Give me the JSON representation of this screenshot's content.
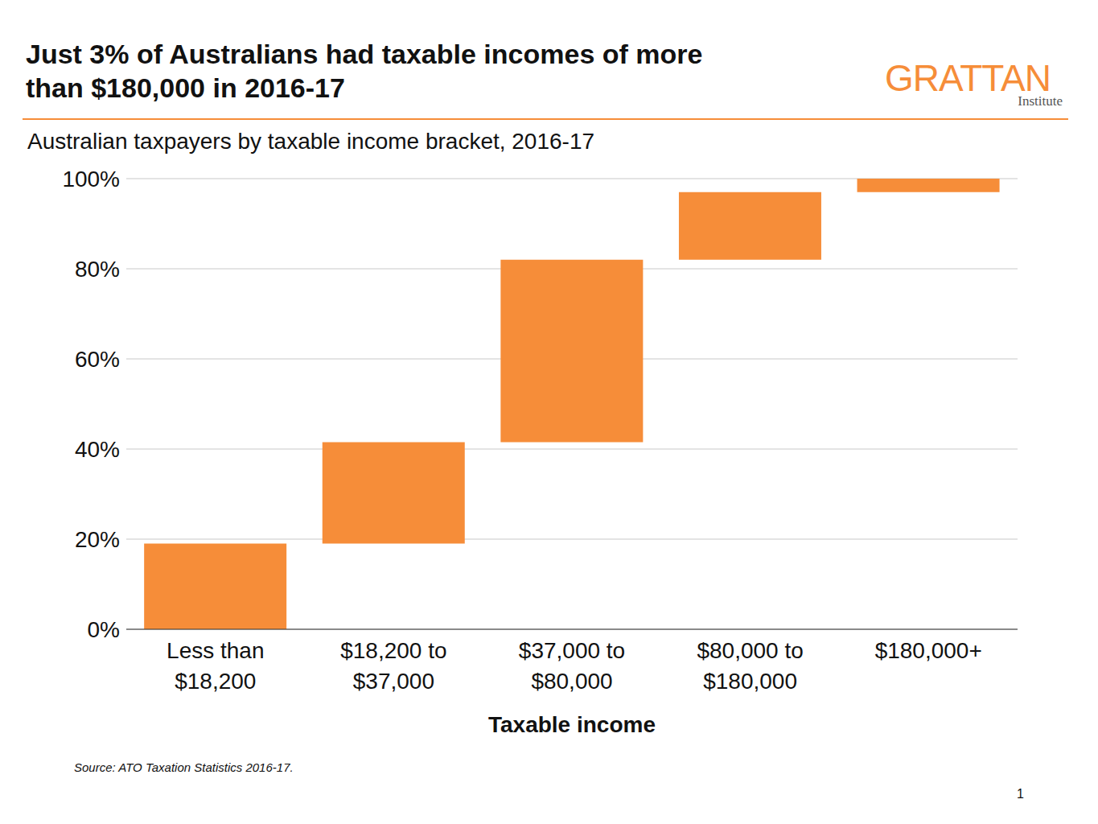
{
  "chart_data": {
    "type": "waterfall",
    "title": "Just 3% of Australians had taxable incomes of more than $180,000 in 2016-17",
    "subtitle": "Australian taxpayers by taxable income bracket, 2016-17",
    "x_label": "Taxable income",
    "source": "Source: ATO Taxation Statistics 2016-17.",
    "logo": "GRATTAN",
    "logo_subtitle": "Institute",
    "page": "1",
    "categories": [
      "Less than $18,200",
      "$18,200 to $37,000",
      "$37,000 to $80,000",
      "$80,000 to $180,000",
      "$180,000+"
    ],
    "values": [
      19,
      22.5,
      40.5,
      15,
      3
    ],
    "color": "#f68d39",
    "ylim": [
      0,
      100
    ],
    "yticks": [
      {
        "value": 0,
        "label": "0%"
      },
      {
        "value": 20,
        "label": "20%"
      },
      {
        "value": 40,
        "label": "40%"
      },
      {
        "value": 60,
        "label": "60%"
      },
      {
        "value": 80,
        "label": "80%"
      },
      {
        "value": 100,
        "label": "100%"
      }
    ],
    "grid": true
  }
}
